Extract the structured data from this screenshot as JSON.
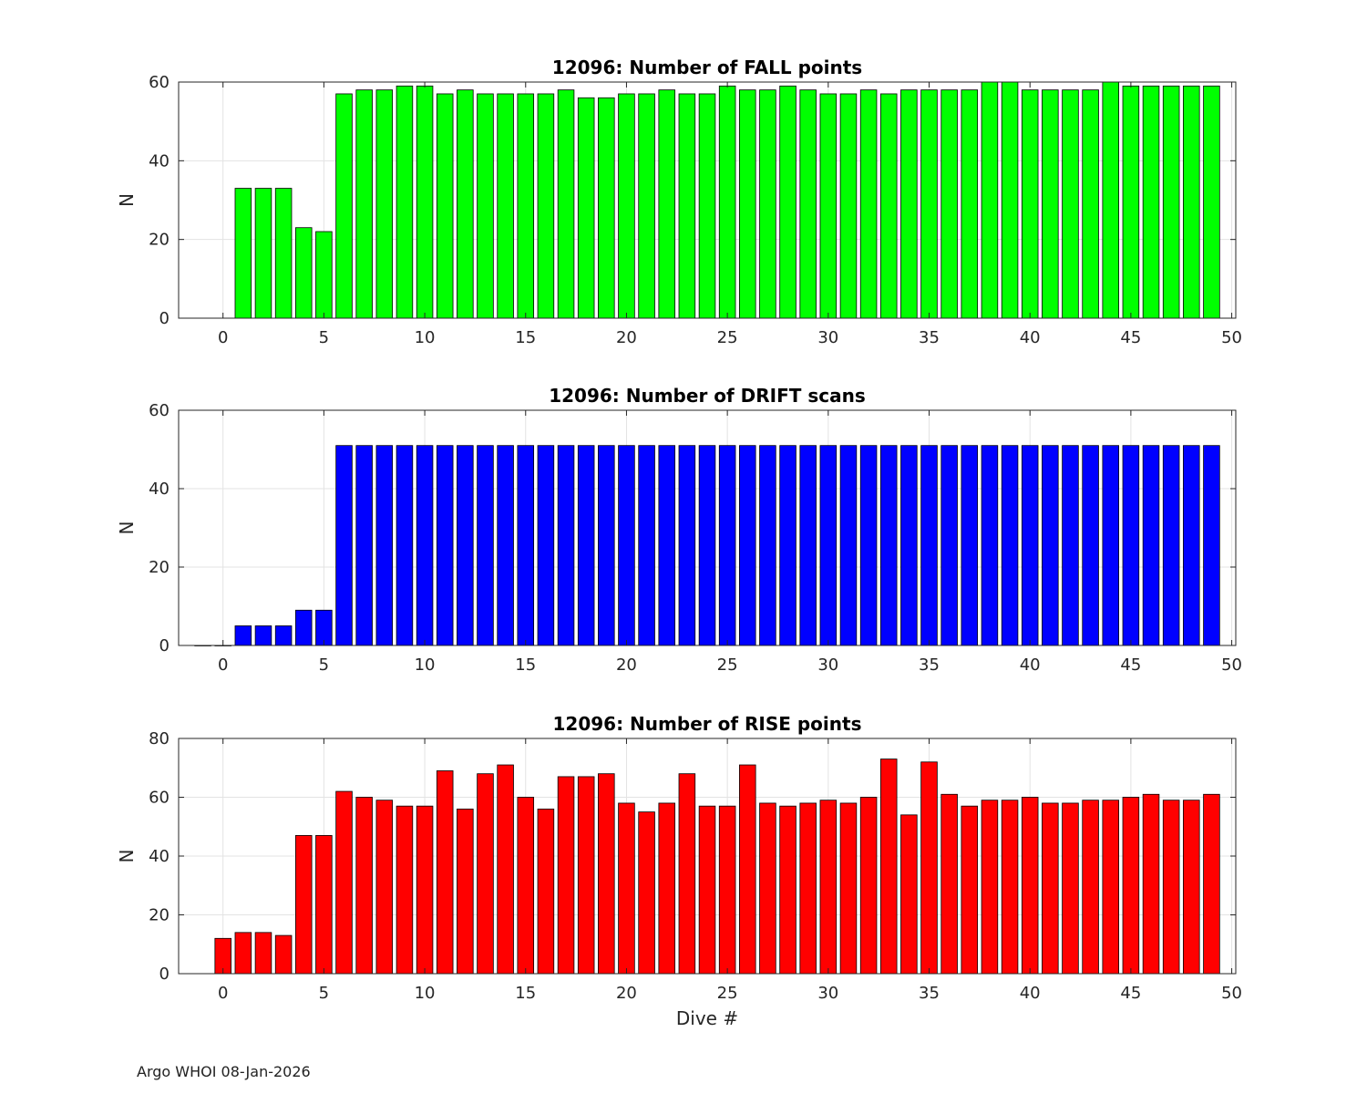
{
  "footer": "Argo WHOI 08-Jan-2026",
  "chart_data": [
    {
      "type": "bar",
      "title": "12096: Number of FALL points",
      "xlabel": "",
      "ylabel": "N",
      "bar_color": "#00ff00",
      "xlim": [
        -2.2,
        50.2
      ],
      "ylim": [
        0,
        60
      ],
      "xticks": [
        0,
        5,
        10,
        15,
        20,
        25,
        30,
        35,
        40,
        45,
        50
      ],
      "yticks": [
        0,
        20,
        40,
        60
      ],
      "grid": true,
      "x": [
        1,
        2,
        3,
        4,
        5,
        6,
        7,
        8,
        9,
        10,
        11,
        12,
        13,
        14,
        15,
        16,
        17,
        18,
        19,
        20,
        21,
        22,
        23,
        24,
        25,
        26,
        27,
        28,
        29,
        30,
        31,
        32,
        33,
        34,
        35,
        36,
        37,
        38,
        39,
        40,
        41,
        42,
        43,
        44,
        45,
        46,
        47,
        48,
        49
      ],
      "values": [
        33,
        33,
        33,
        23,
        22,
        57,
        58,
        58,
        59,
        59,
        57,
        58,
        57,
        57,
        57,
        57,
        58,
        56,
        56,
        57,
        57,
        58,
        57,
        57,
        59,
        58,
        58,
        59,
        58,
        57,
        57,
        58,
        57,
        58,
        58,
        58,
        58,
        60,
        60,
        58,
        58,
        58,
        58,
        60,
        59,
        59,
        59,
        59,
        59
      ]
    },
    {
      "type": "bar",
      "title": "12096: Number of DRIFT scans",
      "xlabel": "",
      "ylabel": "N",
      "bar_color": "#0000ff",
      "xlim": [
        -2.2,
        50.2
      ],
      "ylim": [
        0,
        60
      ],
      "xticks": [
        0,
        5,
        10,
        15,
        20,
        25,
        30,
        35,
        40,
        45,
        50
      ],
      "yticks": [
        0,
        20,
        40,
        60
      ],
      "grid": true,
      "x": [
        -1,
        0,
        1,
        2,
        3,
        4,
        5,
        6,
        7,
        8,
        9,
        10,
        11,
        12,
        13,
        14,
        15,
        16,
        17,
        18,
        19,
        20,
        21,
        22,
        23,
        24,
        25,
        26,
        27,
        28,
        29,
        30,
        31,
        32,
        33,
        34,
        35,
        36,
        37,
        38,
        39,
        40,
        41,
        42,
        43,
        44,
        45,
        46,
        47,
        48,
        49
      ],
      "values": [
        0,
        0,
        5,
        5,
        5,
        9,
        9,
        51,
        51,
        51,
        51,
        51,
        51,
        51,
        51,
        51,
        51,
        51,
        51,
        51,
        51,
        51,
        51,
        51,
        51,
        51,
        51,
        51,
        51,
        51,
        51,
        51,
        51,
        51,
        51,
        51,
        51,
        51,
        51,
        51,
        51,
        51,
        51,
        51,
        51,
        51,
        51,
        51,
        51,
        51,
        51
      ]
    },
    {
      "type": "bar",
      "title": "12096: Number of RISE points",
      "xlabel": "Dive #",
      "ylabel": "N",
      "bar_color": "#ff0000",
      "xlim": [
        -2.2,
        50.2
      ],
      "ylim": [
        0,
        80
      ],
      "xticks": [
        0,
        5,
        10,
        15,
        20,
        25,
        30,
        35,
        40,
        45,
        50
      ],
      "yticks": [
        0,
        20,
        40,
        60,
        80
      ],
      "grid": true,
      "x": [
        0,
        1,
        2,
        3,
        4,
        5,
        6,
        7,
        8,
        9,
        10,
        11,
        12,
        13,
        14,
        15,
        16,
        17,
        18,
        19,
        20,
        21,
        22,
        23,
        24,
        25,
        26,
        27,
        28,
        29,
        30,
        31,
        32,
        33,
        34,
        35,
        36,
        37,
        38,
        39,
        40,
        41,
        42,
        43,
        44,
        45,
        46,
        47,
        48,
        49
      ],
      "values": [
        12,
        14,
        14,
        13,
        47,
        47,
        62,
        60,
        59,
        57,
        57,
        69,
        56,
        68,
        71,
        60,
        56,
        67,
        67,
        68,
        58,
        55,
        58,
        68,
        57,
        57,
        71,
        58,
        57,
        58,
        59,
        58,
        60,
        73,
        54,
        72,
        61,
        57,
        59,
        59,
        60,
        58,
        58,
        59,
        59,
        60,
        61,
        59,
        59,
        61
      ]
    }
  ]
}
